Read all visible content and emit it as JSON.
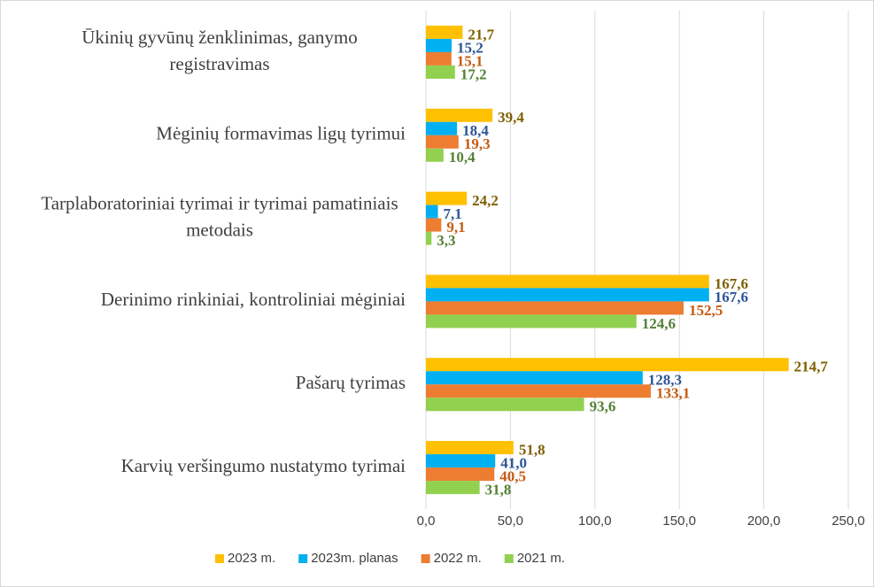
{
  "chart_data": {
    "type": "barh",
    "categories": [
      "Ūkinių gyvūnų ženklinimas, ganymo registravimas",
      "Mėginių formavimas ligų tyrimui",
      "Tarplaboratoriniai tyrimai ir tyrimai pamatiniais metodais",
      "Derinimo rinkiniai, kontroliniai mėginiai",
      "Pašarų tyrimas",
      "Karvių veršingumo nustatymo tyrimai"
    ],
    "series": [
      {
        "name": "2023 m.",
        "color": "#ffc000",
        "label_color": "#7f6000",
        "values": [
          21.7,
          39.4,
          24.2,
          167.6,
          214.7,
          51.8
        ],
        "value_labels": [
          "21,7",
          "39,4",
          "24,2",
          "167,6",
          "214,7",
          "51,8"
        ]
      },
      {
        "name": "2023m. planas",
        "color": "#00b0f0",
        "label_color": "#2f5597",
        "values": [
          15.2,
          18.4,
          7.1,
          167.6,
          128.3,
          41.0
        ],
        "value_labels": [
          "15,2",
          "18,4",
          "7,1",
          "167,6",
          "128,3",
          "41,0"
        ]
      },
      {
        "name": "2022 m.",
        "color": "#ed7d31",
        "label_color": "#c55a11",
        "values": [
          15.1,
          19.3,
          9.1,
          152.5,
          133.1,
          40.5
        ],
        "value_labels": [
          "15,1",
          "19,3",
          "9,1",
          "152,5",
          "133,1",
          "40,5"
        ]
      },
      {
        "name": "2021 m.",
        "color": "#92d050",
        "label_color": "#538135",
        "values": [
          17.2,
          10.4,
          3.3,
          124.6,
          93.6,
          31.8
        ],
        "value_labels": [
          "17,2",
          "10,4",
          "3,3",
          "124,6",
          "93,6",
          "31,8"
        ]
      }
    ],
    "xlim": [
      0,
      250
    ],
    "xticks": [
      {
        "value": 0,
        "label": "0,0"
      },
      {
        "value": 50,
        "label": "50,0"
      },
      {
        "value": 100,
        "label": "100,0"
      },
      {
        "value": 150,
        "label": "150,0"
      },
      {
        "value": 200,
        "label": "200,0"
      },
      {
        "value": 250,
        "label": "250,0"
      }
    ],
    "grid": true,
    "legend": "bottom"
  }
}
